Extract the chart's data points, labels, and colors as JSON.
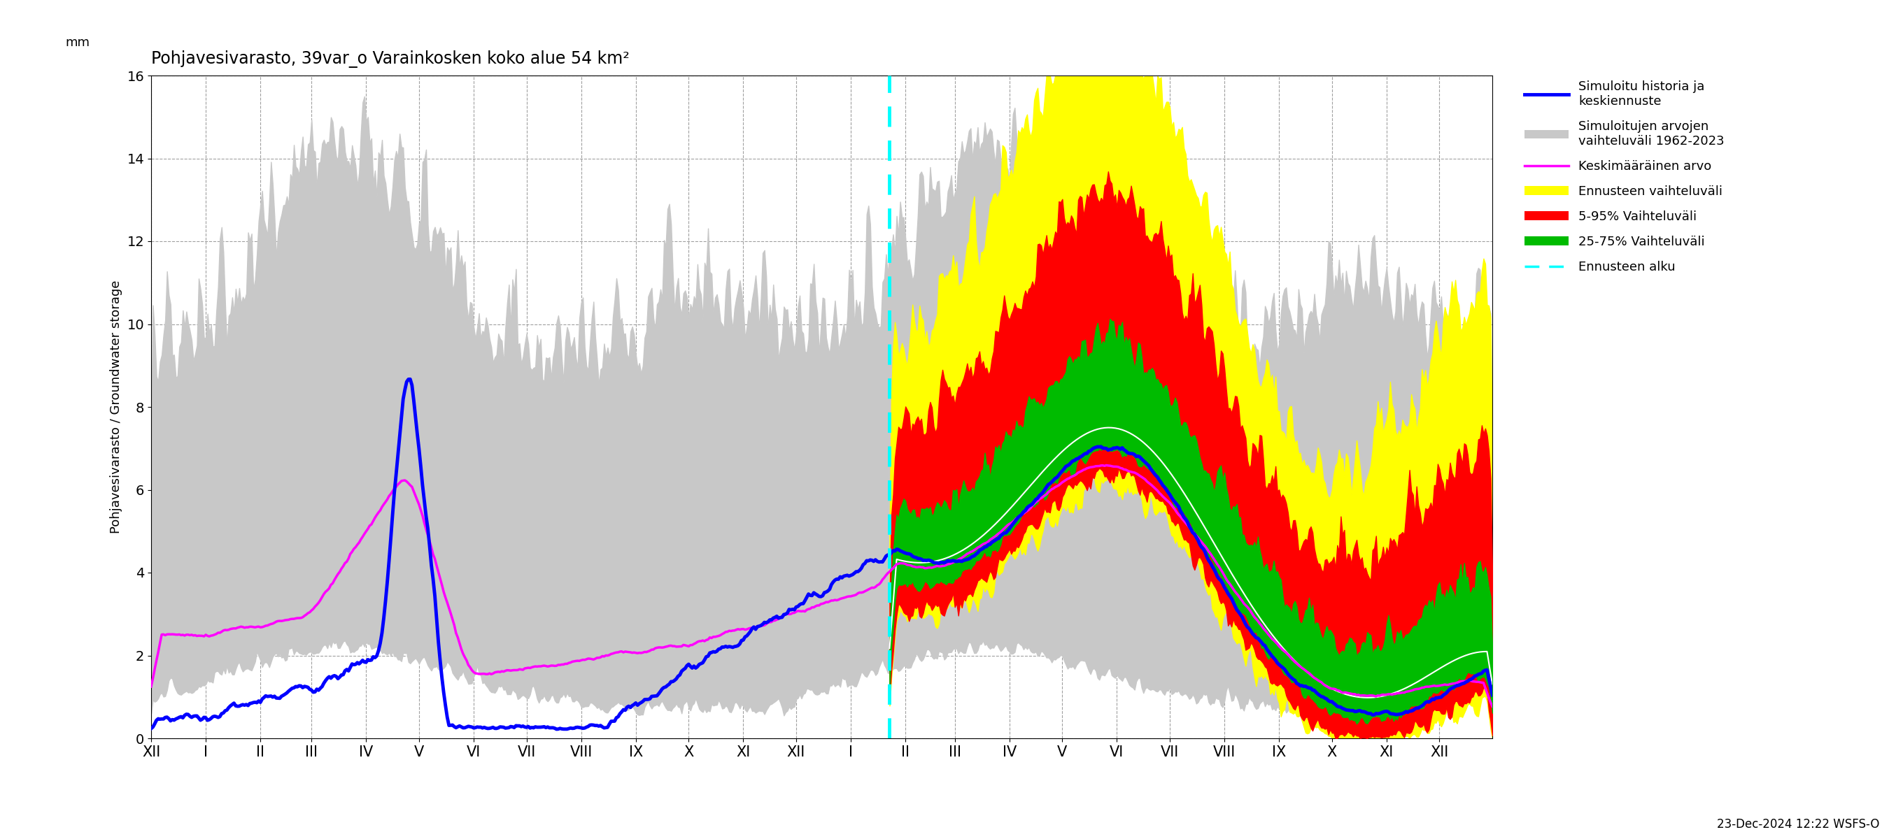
{
  "title": "Pohjavesivarasto, 39var_o Varainkosken koko alue 54 km²",
  "ylabel_fi": "Pohjavesivarasto / Groundwater storage",
  "ylabel_mm": "mm",
  "ylim": [
    0,
    16
  ],
  "yticks": [
    0,
    2,
    4,
    6,
    8,
    10,
    12,
    14,
    16
  ],
  "footnote": "23-Dec-2024 12:22 WSFS-O",
  "colors": {
    "gray_fill": "#c8c8c8",
    "blue_line": "#0000ff",
    "magenta_line": "#ff00ff",
    "yellow_fill": "#ffff00",
    "red_fill": "#ff0000",
    "green_fill": "#00bb00",
    "cyan_dashed": "#00ffff",
    "white_line": "#ffffff"
  }
}
